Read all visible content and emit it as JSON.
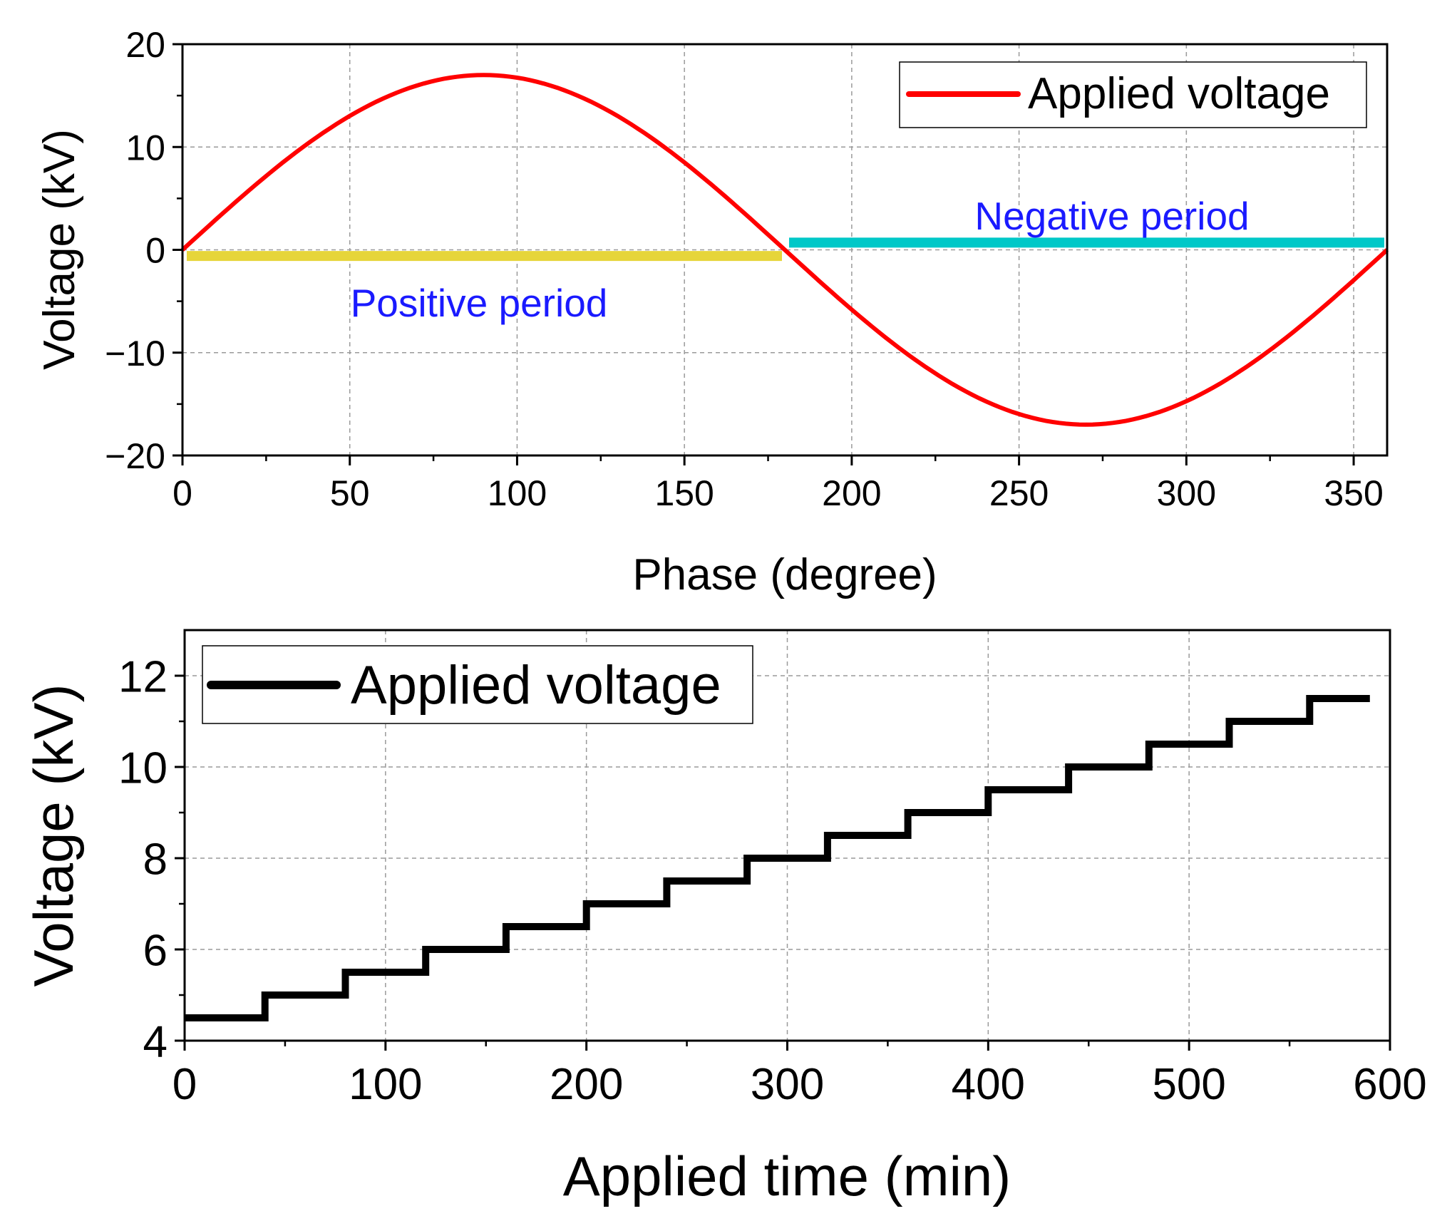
{
  "chart_data": [
    {
      "type": "line",
      "xlabel": "Phase (degree)",
      "ylabel": "Voltage (kV)",
      "xlim": [
        0,
        360
      ],
      "ylim": [
        -20,
        20
      ],
      "xticks": [
        0,
        50,
        100,
        150,
        200,
        250,
        300,
        350
      ],
      "yticks": [
        -20,
        -10,
        0,
        10,
        20
      ],
      "grid": true,
      "legend": {
        "position": "top-right",
        "entries": [
          "Applied voltage"
        ]
      },
      "series": [
        {
          "name": "Applied voltage",
          "color": "#ff0000",
          "function": "sine",
          "amplitude_kv": 17,
          "period_deg": 360
        }
      ],
      "bands": [
        {
          "label": "Positive period",
          "x": [
            0,
            180
          ],
          "y": -0.6,
          "color": "#e6d53a",
          "label_color": "#1a1aff"
        },
        {
          "label": "Negative period",
          "x": [
            180,
            360
          ],
          "y": 0.7,
          "color": "#00c8c8",
          "label_color": "#1a1aff"
        }
      ]
    },
    {
      "type": "line",
      "xlabel": "Applied time (min)",
      "ylabel": "Voltage (kV)",
      "xlim": [
        0,
        600
      ],
      "ylim": [
        4,
        13
      ],
      "xticks": [
        0,
        100,
        200,
        300,
        400,
        500,
        600
      ],
      "yticks": [
        4,
        6,
        8,
        10,
        12
      ],
      "grid": true,
      "legend": {
        "position": "top-left",
        "entries": [
          "Applied voltage"
        ]
      },
      "series": [
        {
          "name": "Applied voltage",
          "color": "#000000",
          "step": true,
          "x": [
            0,
            40,
            80,
            120,
            160,
            200,
            240,
            280,
            320,
            360,
            400,
            440,
            480,
            520,
            560,
            590
          ],
          "values": [
            4.5,
            5.0,
            5.5,
            6.0,
            6.5,
            7.0,
            7.5,
            8.0,
            8.5,
            9.0,
            9.5,
            10.0,
            10.5,
            11.0,
            11.5,
            11.5
          ]
        }
      ]
    }
  ]
}
